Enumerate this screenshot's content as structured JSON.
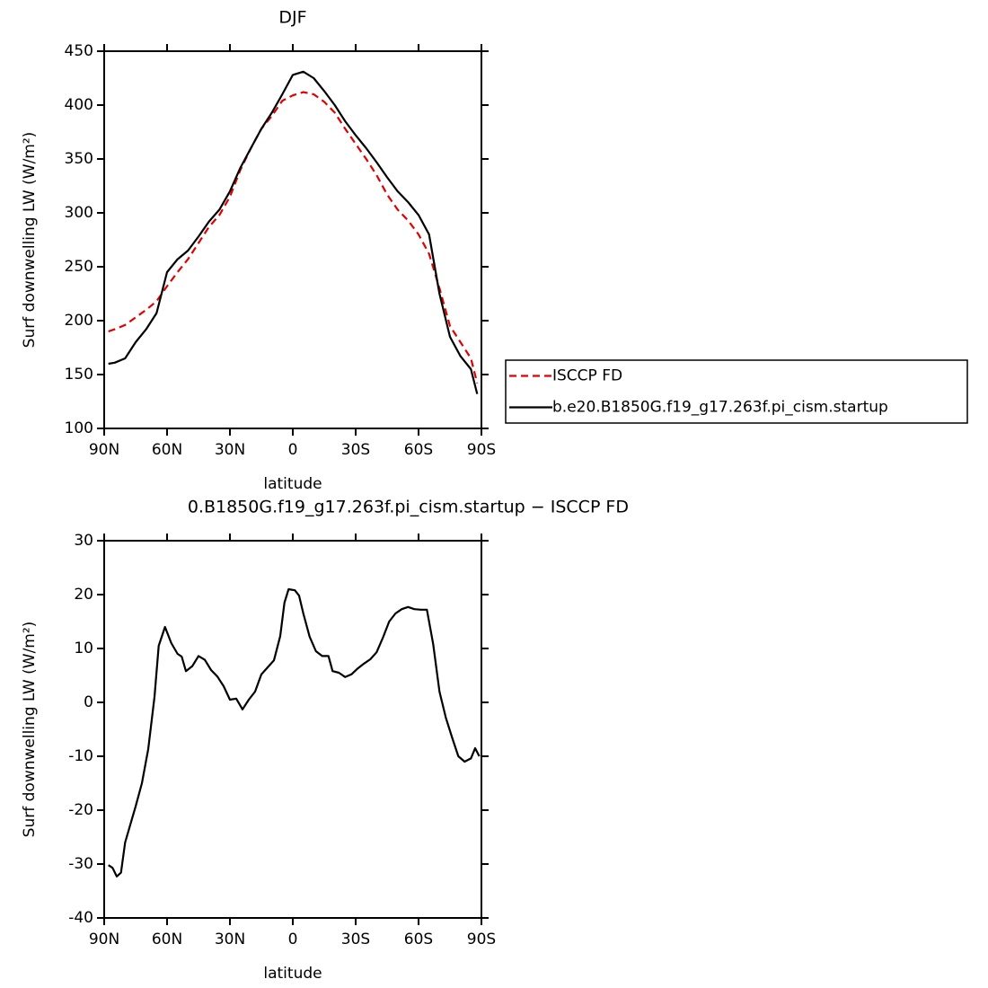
{
  "chart_data": [
    {
      "type": "line",
      "title": "DJF",
      "xlabel": "latitude",
      "ylabel": "Surf downwelling LW (W/m²)",
      "x": [
        88,
        85,
        80,
        75,
        70,
        65,
        60,
        55,
        50,
        45,
        40,
        35,
        30,
        25,
        20,
        15,
        10,
        5,
        0,
        -5,
        -10,
        -15,
        -20,
        -25,
        -30,
        -35,
        -40,
        -45,
        -50,
        -55,
        -60,
        -65,
        -70,
        -75,
        -80,
        -85,
        -88
      ],
      "series": [
        {
          "name": "ISCCP FD",
          "color": "#e00000",
          "dashed": true,
          "values": [
            190,
            192,
            196,
            203,
            210,
            218,
            232,
            245,
            257,
            272,
            287,
            298,
            315,
            340,
            360,
            378,
            390,
            404,
            409,
            412,
            410,
            403,
            393,
            378,
            364,
            350,
            335,
            317,
            303,
            293,
            280,
            262,
            230,
            195,
            180,
            165,
            142
          ]
        },
        {
          "name": "b.e20.B1850G.f19_g17.263f.pi_cism.startup",
          "color": "#000000",
          "dashed": false,
          "values": [
            160,
            161,
            165,
            180,
            192,
            207,
            245,
            257,
            265,
            278,
            292,
            303,
            320,
            342,
            360,
            378,
            393,
            410,
            428,
            431,
            425,
            413,
            400,
            385,
            372,
            360,
            347,
            333,
            320,
            310,
            298,
            280,
            225,
            185,
            167,
            155,
            132
          ]
        }
      ],
      "xlim": [
        90,
        -90
      ],
      "xticks": [
        {
          "value": 90,
          "label": "90N"
        },
        {
          "value": 60,
          "label": "60N"
        },
        {
          "value": 30,
          "label": "30N"
        },
        0,
        {
          "value": -30,
          "label": "30S"
        },
        {
          "value": -60,
          "label": "60S"
        },
        {
          "value": -90,
          "label": "90S"
        }
      ],
      "ylim": [
        100,
        450
      ],
      "yticks": [
        100,
        150,
        200,
        250,
        300,
        350,
        400,
        450
      ],
      "legend": "right"
    },
    {
      "type": "line",
      "title": "0.B1850G.f19_g17.263f.pi_cism.startup − ISCCP FD",
      "xlabel": "latitude",
      "ylabel": "Surf downwelling LW (W/m²)",
      "x": [
        88,
        86,
        84,
        82,
        80,
        75,
        72,
        69,
        66,
        64,
        61,
        58,
        55,
        53,
        51,
        48,
        45,
        42,
        39,
        36,
        33,
        30,
        27,
        24,
        21,
        18,
        15,
        12,
        9,
        6,
        4,
        2,
        -1,
        -3,
        -5,
        -8,
        -11,
        -14,
        -17,
        -19,
        -22,
        -25,
        -28,
        -31,
        -34,
        -37,
        -40,
        -43,
        -46,
        -49,
        -52,
        -55,
        -58,
        -61,
        -64,
        -67,
        -70,
        -73,
        -76,
        -79,
        -82,
        -85,
        -87,
        -89
      ],
      "values": [
        -30.2,
        -30.7,
        -32.3,
        -31.6,
        -26,
        -19.3,
        -15,
        -8.7,
        1,
        10.5,
        14,
        11,
        9,
        8.5,
        5.8,
        6.7,
        8.6,
        7.9,
        6,
        4.8,
        3,
        0.5,
        0.7,
        -1.3,
        0.5,
        2,
        5.2,
        6.5,
        7.8,
        12.3,
        18.5,
        21,
        20.8,
        19.8,
        16.5,
        12.2,
        9.5,
        8.6,
        8.6,
        5.8,
        5.5,
        4.7,
        5.2,
        6.3,
        7.2,
        8,
        9.3,
        12,
        15,
        16.5,
        17.3,
        17.7,
        17.3,
        17.2,
        17.2,
        10.8,
        2,
        -2.8,
        -6.5,
        -10,
        -11,
        -10.4,
        -8.5,
        -10
      ],
      "color": "#000000",
      "xlim": [
        90,
        -90
      ],
      "xticks": [
        {
          "value": 90,
          "label": "90N"
        },
        {
          "value": 60,
          "label": "60N"
        },
        {
          "value": 30,
          "label": "30N"
        },
        0,
        {
          "value": -30,
          "label": "30S"
        },
        {
          "value": -60,
          "label": "60S"
        },
        {
          "value": -90,
          "label": "90S"
        }
      ],
      "ylim": [
        -40,
        30
      ],
      "yticks": [
        -40,
        -30,
        -20,
        -10,
        0,
        10,
        20,
        30
      ]
    }
  ]
}
